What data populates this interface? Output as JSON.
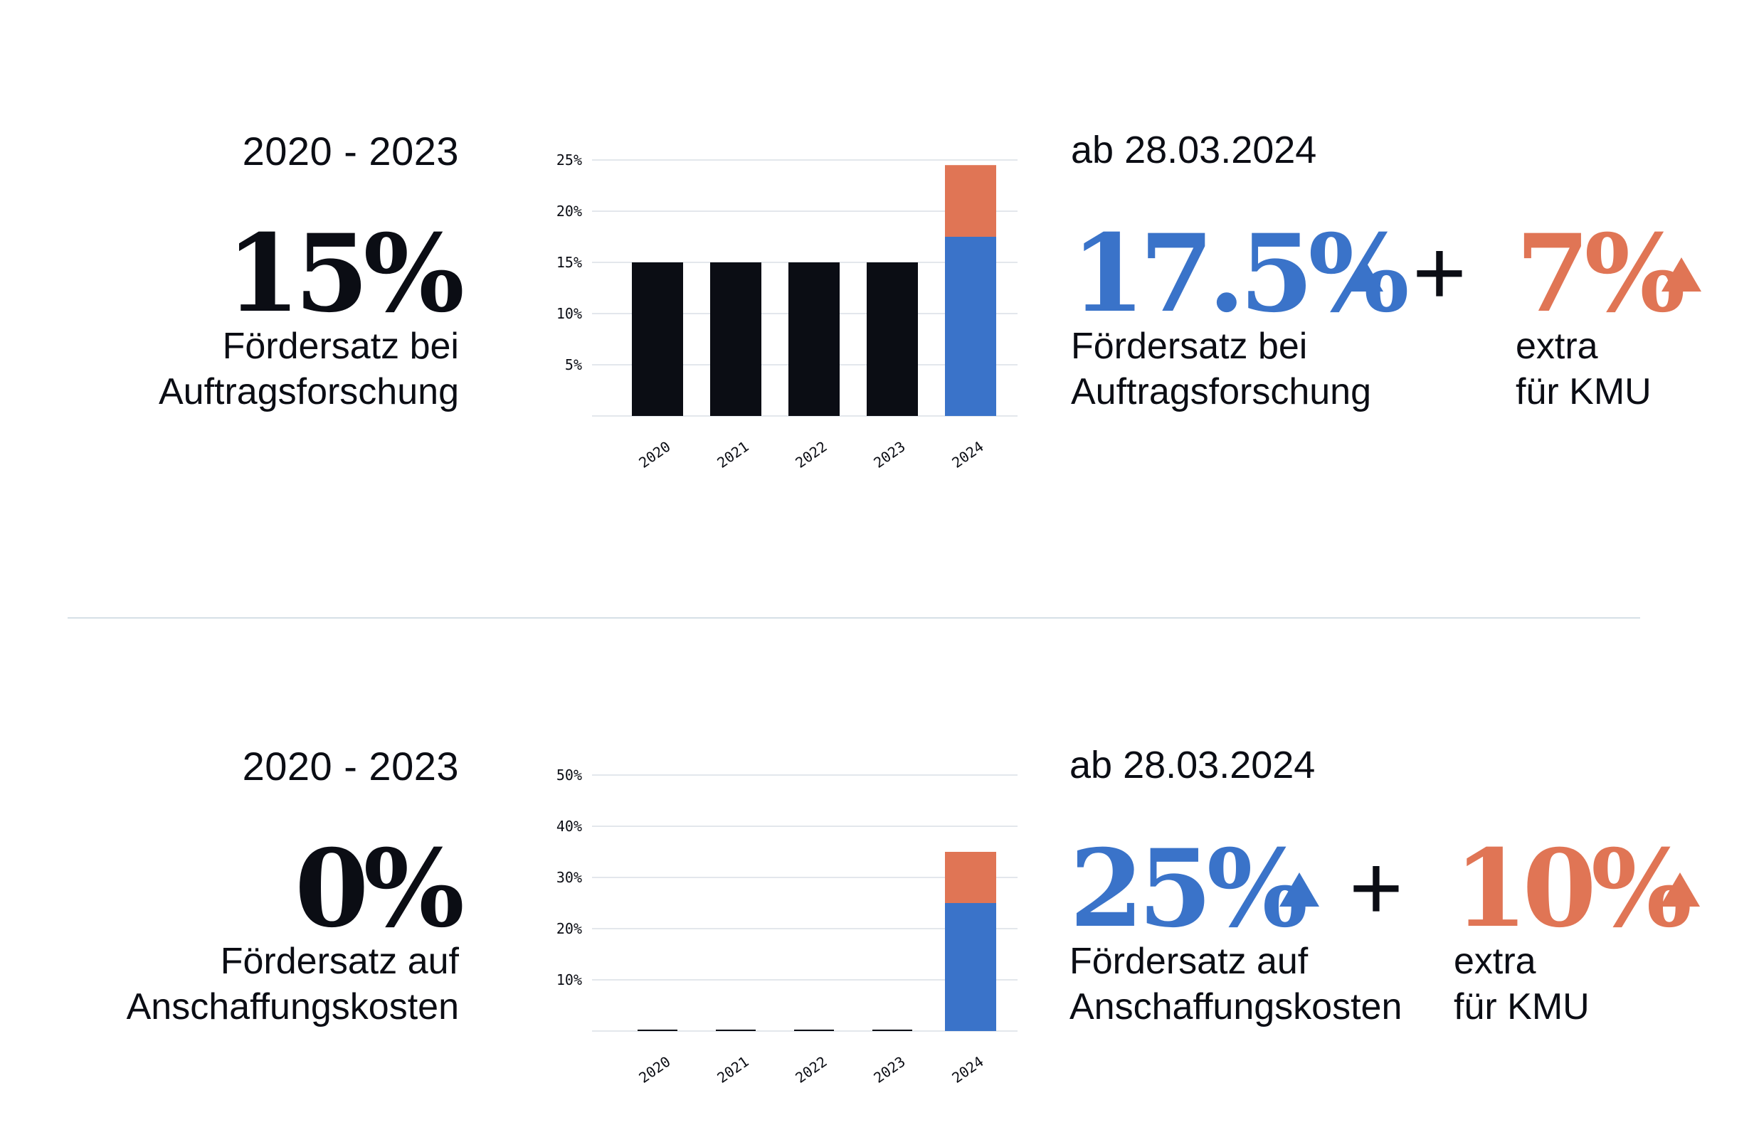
{
  "sections": [
    {
      "period": "2020 - 2023",
      "value": "15%",
      "desc_line1": "Fördersatz bei",
      "desc_line2": "Auftragsforschung",
      "date": "ab 28.03.2024",
      "new_value": "17.5%",
      "new_desc_line1": "Fördersatz bei",
      "new_desc_line2": "Auftragsforschung",
      "plus": "+",
      "extra_value": "7%",
      "extra_line1": "extra",
      "extra_line2": "für KMU"
    },
    {
      "period": "2020 - 2023",
      "value": "0%",
      "desc_line1": "Fördersatz auf",
      "desc_line2": "Anschaffungskosten",
      "date": "ab 28.03.2024",
      "new_value": "25%",
      "new_desc_line1": "Fördersatz auf",
      "new_desc_line2": "Anschaffungskosten",
      "plus": "+",
      "extra_value": "10%",
      "extra_line1": "extra",
      "extra_line2": "für KMU"
    }
  ],
  "colors": {
    "base": "#0b0d14",
    "new": "#3a73c9",
    "extra": "#e07555",
    "grid": "#e3e7ec"
  },
  "chart_data": [
    {
      "type": "bar",
      "stacked": true,
      "categories": [
        "2020",
        "2021",
        "2022",
        "2023",
        "2024"
      ],
      "series": [
        {
          "values": [
            15,
            15,
            15,
            15,
            0
          ],
          "color": "#0b0d14"
        },
        {
          "values": [
            0,
            0,
            0,
            0,
            17.5
          ],
          "color": "#3a73c9"
        },
        {
          "values": [
            0,
            0,
            0,
            0,
            7
          ],
          "color": "#e07555"
        }
      ],
      "ylim": [
        0,
        25
      ],
      "yticks": [
        5,
        10,
        15,
        20,
        25
      ],
      "ytick_labels": [
        "5%",
        "10%",
        "15%",
        "20%",
        "25%"
      ],
      "grid": true
    },
    {
      "type": "bar",
      "stacked": true,
      "categories": [
        "2020",
        "2021",
        "2022",
        "2023",
        "2024"
      ],
      "series": [
        {
          "values": [
            0,
            0,
            0,
            0,
            0
          ],
          "color": "#0b0d14"
        },
        {
          "values": [
            0,
            0,
            0,
            0,
            25
          ],
          "color": "#3a73c9"
        },
        {
          "values": [
            0,
            0,
            0,
            0,
            10
          ],
          "color": "#e07555"
        }
      ],
      "ylim": [
        0,
        50
      ],
      "yticks": [
        10,
        20,
        30,
        40,
        50
      ],
      "ytick_labels": [
        "10%",
        "20%",
        "30%",
        "40%",
        "50%"
      ],
      "grid": true
    }
  ]
}
